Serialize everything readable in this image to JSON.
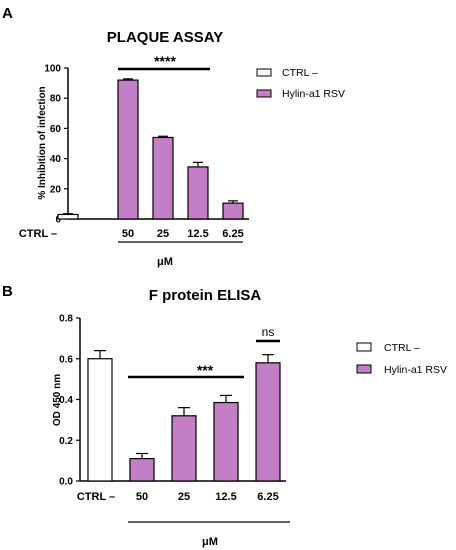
{
  "colors": {
    "ctrl": "#ffffff",
    "treated": "#c37fc6",
    "stroke": "#000000"
  },
  "chart_data": [
    {
      "type": "bar",
      "panel": "A",
      "title": "PLAQUE ASSAY",
      "ylabel": "% Inhibition of infection",
      "xlabel": "μM",
      "categories": [
        "CTRL –",
        "50",
        "25",
        "12.5",
        "6.25"
      ],
      "ylim": [
        0,
        100
      ],
      "yticks": [
        "0",
        "20",
        "40",
        "60",
        "80",
        "100"
      ],
      "legend": [
        "CTRL –",
        "Hylin-a1 RSV"
      ],
      "legend_position": "right",
      "significance": "****",
      "bars": [
        {
          "category": "CTRL –",
          "value": 3,
          "error": 0.5,
          "group": "CTRL –"
        },
        {
          "category": "50",
          "value": 92,
          "error": 0.8,
          "group": "Hylin-a1 RSV"
        },
        {
          "category": "25",
          "value": 54,
          "error": 0.8,
          "group": "Hylin-a1 RSV"
        },
        {
          "category": "12.5",
          "value": 34.5,
          "error": 3,
          "group": "Hylin-a1 RSV"
        },
        {
          "category": "6.25",
          "value": 10.5,
          "error": 1.5,
          "group": "Hylin-a1 RSV"
        }
      ]
    },
    {
      "type": "bar",
      "panel": "B",
      "title": "F protein ELISA",
      "ylabel": "OD 450 nm",
      "xlabel": "μM",
      "categories": [
        "CTRL –",
        "50",
        "25",
        "12.5",
        "6.25"
      ],
      "ylim": [
        0,
        0.8
      ],
      "yticks": [
        "0.0",
        "0.2",
        "0.4",
        "0.6",
        "0.8"
      ],
      "legend": [
        "CTRL –",
        "Hylin-a1 RSV"
      ],
      "legend_position": "right",
      "significance": "***",
      "significance_ns": "ns",
      "bars": [
        {
          "category": "CTRL –",
          "value": 0.6,
          "error": 0.04,
          "group": "CTRL –"
        },
        {
          "category": "50",
          "value": 0.11,
          "error": 0.025,
          "group": "Hylin-a1 RSV"
        },
        {
          "category": "25",
          "value": 0.32,
          "error": 0.04,
          "group": "Hylin-a1 RSV"
        },
        {
          "category": "12.5",
          "value": 0.385,
          "error": 0.035,
          "group": "Hylin-a1 RSV"
        },
        {
          "category": "6.25",
          "value": 0.58,
          "error": 0.04,
          "group": "Hylin-a1 RSV"
        }
      ]
    }
  ]
}
